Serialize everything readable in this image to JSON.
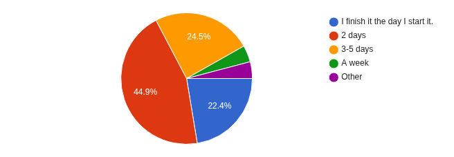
{
  "chart_data": {
    "type": "pie",
    "categories": [
      "I finish it the day I start it.",
      "2 days",
      "3-5 days",
      "A week",
      "Other"
    ],
    "values": [
      22.4,
      44.9,
      24.5,
      4.1,
      4.1
    ],
    "value_labels": [
      "22.4%",
      "44.9%",
      "24.5%",
      null,
      null
    ],
    "colors": [
      "#3366cc",
      "#dc3912",
      "#ff9900",
      "#109618",
      "#990099"
    ],
    "legend": "right"
  }
}
